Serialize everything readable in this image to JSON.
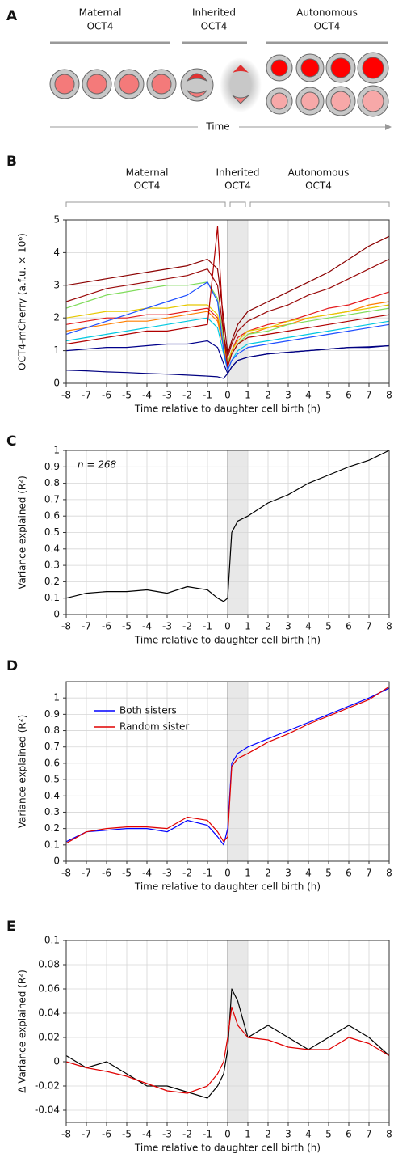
{
  "panel_labels": [
    "A",
    "B",
    "C",
    "D",
    "E"
  ],
  "diagram": {
    "phases": [
      [
        "Maternal",
        "OCT4"
      ],
      [
        "Inherited",
        "OCT4"
      ],
      [
        "Autonomous",
        "OCT4"
      ]
    ],
    "time_label": "Time"
  },
  "chart_data": [
    {
      "type": "line",
      "ylabel": "OCT4-mCherry (a.f.u. × 10⁶)",
      "xlabel": "Time relative to daughter cell birth (h)",
      "phases": [
        {
          "label": [
            "Maternal",
            "OCT4"
          ],
          "span": [
            -8,
            0
          ]
        },
        {
          "label": [
            "Inherited",
            "OCT4"
          ],
          "span": [
            0,
            1
          ]
        },
        {
          "label": [
            "Autonomous",
            "OCT4"
          ],
          "span": [
            1,
            8
          ]
        }
      ],
      "shade": [
        0,
        1
      ],
      "grid": true,
      "xlim": [
        -8,
        8
      ],
      "xticks": [
        -8,
        -7,
        -6,
        -5,
        -4,
        -3,
        -2,
        -1,
        0,
        1,
        2,
        3,
        4,
        5,
        6,
        7,
        8
      ],
      "ylim": [
        0,
        5
      ],
      "yticks": [
        0,
        1,
        2,
        3,
        4,
        5
      ],
      "x": [
        -8,
        -7,
        -6,
        -5,
        -4,
        -3,
        -2,
        -1,
        -0.5,
        -0.2,
        0,
        0.2,
        0.5,
        1,
        2,
        3,
        4,
        5,
        6,
        7,
        8
      ],
      "series": [
        {
          "color": "#8b0000",
          "values": [
            3.0,
            3.1,
            3.2,
            3.3,
            3.4,
            3.5,
            3.6,
            3.8,
            3.5,
            2.0,
            0.9,
            1.3,
            1.8,
            2.2,
            2.5,
            2.8,
            3.1,
            3.4,
            3.8,
            4.2,
            4.5
          ]
        },
        {
          "color": "#9a0a0a",
          "values": [
            2.5,
            2.7,
            2.9,
            3.0,
            3.1,
            3.2,
            3.3,
            3.5,
            3.0,
            1.5,
            0.8,
            1.2,
            1.6,
            1.9,
            2.2,
            2.4,
            2.7,
            2.9,
            3.2,
            3.5,
            3.8
          ]
        },
        {
          "color": "#e41a1c",
          "values": [
            1.8,
            1.9,
            2.0,
            2.0,
            2.1,
            2.1,
            2.2,
            2.3,
            2.0,
            1.2,
            0.6,
            1.0,
            1.4,
            1.6,
            1.8,
            1.9,
            2.1,
            2.3,
            2.4,
            2.6,
            2.8
          ]
        },
        {
          "color": "#ff7f00",
          "values": [
            1.6,
            1.7,
            1.8,
            1.9,
            1.9,
            2.0,
            2.1,
            2.2,
            1.9,
            1.1,
            0.5,
            0.9,
            1.2,
            1.5,
            1.7,
            1.8,
            2.0,
            2.1,
            2.2,
            2.4,
            2.5
          ]
        },
        {
          "color": "#e6c800",
          "values": [
            2.0,
            2.1,
            2.2,
            2.2,
            2.3,
            2.3,
            2.4,
            2.4,
            2.1,
            1.2,
            0.6,
            1.0,
            1.3,
            1.6,
            1.7,
            1.9,
            2.0,
            2.1,
            2.2,
            2.3,
            2.4
          ]
        },
        {
          "color": "#7fdc5a",
          "values": [
            2.3,
            2.5,
            2.7,
            2.8,
            2.9,
            3.0,
            3.0,
            3.1,
            2.6,
            1.3,
            0.6,
            0.9,
            1.2,
            1.5,
            1.6,
            1.8,
            1.9,
            2.0,
            2.1,
            2.2,
            2.3
          ]
        },
        {
          "color": "#00c8e0",
          "values": [
            1.3,
            1.4,
            1.5,
            1.6,
            1.7,
            1.8,
            1.9,
            2.0,
            1.7,
            0.9,
            0.4,
            0.7,
            1.0,
            1.2,
            1.3,
            1.4,
            1.5,
            1.6,
            1.7,
            1.8,
            1.9
          ]
        },
        {
          "color": "#1f4fff",
          "values": [
            1.5,
            1.7,
            1.9,
            2.1,
            2.3,
            2.5,
            2.7,
            3.1,
            2.5,
            1.0,
            0.4,
            0.7,
            0.9,
            1.1,
            1.2,
            1.3,
            1.4,
            1.5,
            1.6,
            1.7,
            1.8
          ]
        },
        {
          "color": "#00008b",
          "values": [
            1.0,
            1.05,
            1.1,
            1.1,
            1.15,
            1.2,
            1.2,
            1.3,
            1.1,
            0.6,
            0.3,
            0.5,
            0.7,
            0.8,
            0.9,
            0.95,
            1.0,
            1.05,
            1.1,
            1.1,
            1.15
          ]
        },
        {
          "color": "#000080",
          "values": [
            0.4,
            0.38,
            0.35,
            0.33,
            0.3,
            0.28,
            0.25,
            0.22,
            0.2,
            0.15,
            0.3,
            0.5,
            0.7,
            0.8,
            0.9,
            0.95,
            1.0,
            1.05,
            1.1,
            1.12,
            1.15
          ]
        },
        {
          "color": "#b00000",
          "values": [
            1.2,
            1.3,
            1.4,
            1.5,
            1.6,
            1.6,
            1.7,
            1.8,
            4.8,
            1.5,
            0.5,
            0.9,
            1.2,
            1.4,
            1.5,
            1.6,
            1.7,
            1.8,
            1.9,
            2.0,
            2.1
          ]
        }
      ]
    },
    {
      "type": "line",
      "ylabel": "Variance explained (R²)",
      "xlabel": "Time relative to daughter cell birth (h)",
      "annotation": "n = 268",
      "shade": [
        0,
        1
      ],
      "grid": true,
      "xlim": [
        -8,
        8
      ],
      "xticks": [
        -8,
        -7,
        -6,
        -5,
        -4,
        -3,
        -2,
        -1,
        0,
        1,
        2,
        3,
        4,
        5,
        6,
        7,
        8
      ],
      "ylim": [
        0,
        1
      ],
      "yticks": [
        0,
        0.1,
        0.2,
        0.3,
        0.4,
        0.5,
        0.6,
        0.7,
        0.8,
        0.9,
        1
      ],
      "x": [
        -8,
        -7,
        -6,
        -5,
        -4,
        -3,
        -2,
        -1,
        -0.5,
        -0.2,
        0,
        0.2,
        0.5,
        1,
        2,
        3,
        4,
        5,
        6,
        7,
        8
      ],
      "series": [
        {
          "color": "#000000",
          "values": [
            0.1,
            0.13,
            0.14,
            0.14,
            0.15,
            0.13,
            0.17,
            0.15,
            0.1,
            0.08,
            0.1,
            0.5,
            0.57,
            0.6,
            0.68,
            0.73,
            0.8,
            0.85,
            0.9,
            0.94,
            1.0
          ]
        }
      ]
    },
    {
      "type": "line",
      "ylabel": "Variance explained (R²)",
      "xlabel": "Time relative to daughter cell birth (h)",
      "shade": [
        0,
        1
      ],
      "grid": true,
      "legend": "upper left",
      "xlim": [
        -8,
        8
      ],
      "xticks": [
        -8,
        -7,
        -6,
        -5,
        -4,
        -3,
        -2,
        -1,
        0,
        1,
        2,
        3,
        4,
        5,
        6,
        7,
        8
      ],
      "ylim": [
        0,
        1.1
      ],
      "yticks": [
        0,
        0.1,
        0.2,
        0.3,
        0.4,
        0.5,
        0.6,
        0.7,
        0.8,
        0.9,
        1
      ],
      "x": [
        -8,
        -7,
        -6,
        -5,
        -4,
        -3,
        -2,
        -1,
        -0.5,
        -0.2,
        0,
        0.2,
        0.5,
        1,
        2,
        3,
        4,
        5,
        6,
        7,
        8
      ],
      "series": [
        {
          "name": "Both sisters",
          "color": "#0000ff",
          "values": [
            0.12,
            0.18,
            0.19,
            0.2,
            0.2,
            0.18,
            0.25,
            0.22,
            0.15,
            0.1,
            0.2,
            0.6,
            0.66,
            0.7,
            0.75,
            0.8,
            0.85,
            0.9,
            0.95,
            1.0,
            1.06
          ]
        },
        {
          "name": "Random sister",
          "color": "#e00000",
          "values": [
            0.11,
            0.18,
            0.2,
            0.21,
            0.21,
            0.2,
            0.27,
            0.25,
            0.18,
            0.12,
            0.15,
            0.58,
            0.63,
            0.66,
            0.73,
            0.78,
            0.84,
            0.89,
            0.94,
            0.99,
            1.07
          ]
        }
      ]
    },
    {
      "type": "line",
      "ylabel": "Δ Variance explained (R²)",
      "xlabel": "Time relative to daughter cell birth (h)",
      "shade": [
        0,
        1
      ],
      "grid": true,
      "xlim": [
        -8,
        8
      ],
      "xticks": [
        -8,
        -7,
        -6,
        -5,
        -4,
        -3,
        -2,
        -1,
        0,
        1,
        2,
        3,
        4,
        5,
        6,
        7,
        8
      ],
      "ylim": [
        -0.05,
        0.1
      ],
      "yticks": [
        -0.04,
        -0.02,
        0,
        0.02,
        0.04,
        0.06,
        0.08,
        0.1
      ],
      "x": [
        -8,
        -7,
        -6,
        -5,
        -4,
        -3,
        -2,
        -1,
        -0.5,
        -0.2,
        0,
        0.2,
        0.5,
        1,
        2,
        3,
        4,
        5,
        6,
        7,
        8
      ],
      "series": [
        {
          "color": "#000000",
          "values": [
            0.005,
            -0.005,
            0.0,
            -0.01,
            -0.02,
            -0.02,
            -0.025,
            -0.03,
            -0.02,
            -0.01,
            0.01,
            0.06,
            0.05,
            0.02,
            0.03,
            0.02,
            0.01,
            0.02,
            0.03,
            0.02,
            0.005
          ]
        },
        {
          "color": "#e00000",
          "values": [
            0.0,
            -0.005,
            -0.008,
            -0.012,
            -0.018,
            -0.024,
            -0.026,
            -0.02,
            -0.01,
            0.0,
            0.02,
            0.045,
            0.03,
            0.02,
            0.018,
            0.012,
            0.01,
            0.01,
            0.02,
            0.015,
            0.005
          ]
        }
      ]
    }
  ]
}
